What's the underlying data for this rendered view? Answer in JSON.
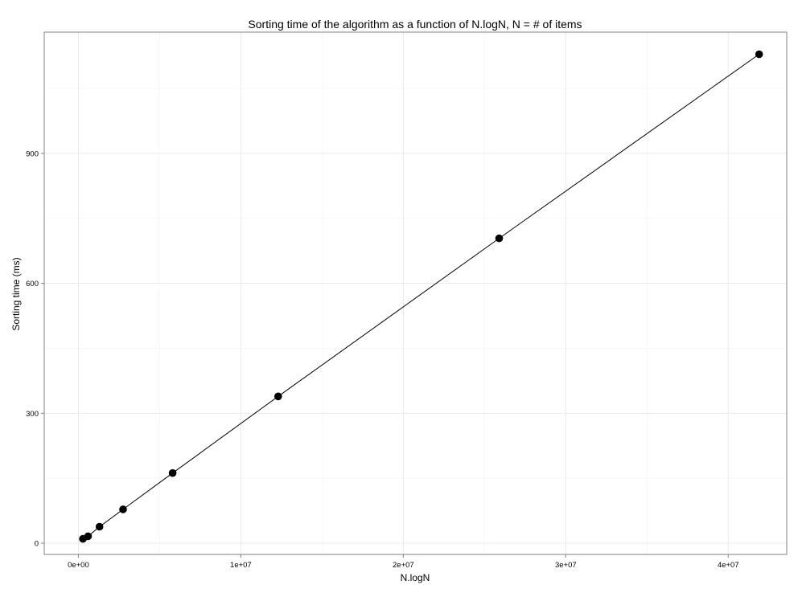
{
  "chart_data": {
    "type": "scatter",
    "title": "Sorting time of the algorithm as a function of N.logN, N = # of items",
    "xlabel": "N.logN",
    "ylabel": "Sorting time (ms)",
    "xlim": [
      -2100000,
      43600000
    ],
    "ylim": [
      -26,
      1180
    ],
    "x_ticks": [
      0,
      10000000,
      20000000,
      30000000,
      40000000
    ],
    "x_tick_labels": [
      "0e+00",
      "1e+07",
      "2e+07",
      "3e+07",
      "4e+07"
    ],
    "y_ticks": [
      0,
      300,
      600,
      900
    ],
    "y_tick_labels": [
      "0",
      "300",
      "600",
      "900"
    ],
    "grid": true,
    "legend": "none",
    "series": [
      {
        "x": [
          280000,
          600000,
          1300000,
          2750000,
          5800000,
          12300000,
          25900000,
          41900000
        ],
        "y": [
          10,
          16,
          38,
          78,
          162,
          339,
          704,
          1129
        ],
        "line": true,
        "markers": true
      }
    ]
  }
}
